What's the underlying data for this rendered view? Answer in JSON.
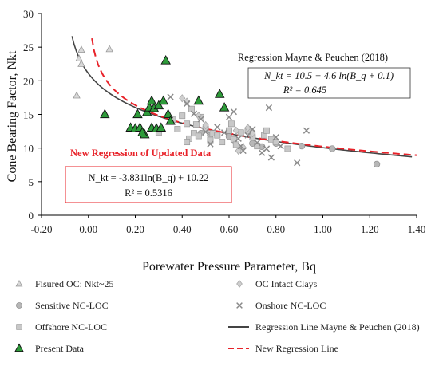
{
  "chart_data": {
    "type": "scatter",
    "xlabel": "Porewater Pressure Parameter, Bq",
    "ylabel": "Cone Bearing Factor, Nkt",
    "xlim": [
      -0.2,
      1.4
    ],
    "ylim": [
      0,
      30
    ],
    "x_ticks": [
      "-0.20",
      "0.00",
      "0.20",
      "0.40",
      "0.60",
      "0.80",
      "1.00",
      "1.20",
      "1.40"
    ],
    "y_ticks": [
      "0",
      "5",
      "10",
      "15",
      "20",
      "25",
      "30"
    ],
    "grid": false,
    "legend_position": "bottom",
    "series": [
      {
        "name": "Fisured OC: Nkt~25",
        "marker": "triangle-open",
        "color": "#9a9a9a",
        "points": [
          [
            -0.05,
            17.8
          ],
          [
            -0.04,
            23.3
          ],
          [
            -0.03,
            22.5
          ],
          [
            -0.03,
            24.6
          ],
          [
            0.09,
            24.7
          ]
        ]
      },
      {
        "name": "Sensitive NC-LOC",
        "marker": "circle",
        "color": "#b7b7b7",
        "points": [
          [
            0.48,
            12.2
          ],
          [
            0.52,
            11.9
          ],
          [
            0.6,
            11.7
          ],
          [
            0.62,
            11.2
          ],
          [
            0.7,
            10.7
          ],
          [
            0.74,
            10.2
          ],
          [
            0.8,
            10.7
          ],
          [
            0.91,
            10.3
          ],
          [
            1.04,
            9.9
          ],
          [
            1.23,
            7.6
          ]
        ]
      },
      {
        "name": "Offshore NC-LOC",
        "marker": "square",
        "color": "#c8c8c8",
        "points": [
          [
            0.3,
            12.3
          ],
          [
            0.36,
            14.2
          ],
          [
            0.38,
            12.8
          ],
          [
            0.4,
            14.8
          ],
          [
            0.42,
            13.6
          ],
          [
            0.43,
            11.4
          ],
          [
            0.44,
            15.8
          ],
          [
            0.45,
            12.2
          ],
          [
            0.46,
            13.5
          ],
          [
            0.47,
            11.8
          ],
          [
            0.48,
            14.6
          ],
          [
            0.5,
            12.8
          ],
          [
            0.52,
            11.2
          ],
          [
            0.53,
            12.2
          ],
          [
            0.55,
            11.9
          ],
          [
            0.57,
            10.9
          ],
          [
            0.6,
            12.6
          ],
          [
            0.61,
            13.6
          ],
          [
            0.62,
            11.3
          ],
          [
            0.63,
            10.5
          ],
          [
            0.65,
            12.3
          ],
          [
            0.68,
            12.6
          ],
          [
            0.7,
            11.6
          ],
          [
            0.72,
            10.3
          ],
          [
            0.75,
            11.9
          ],
          [
            0.76,
            12.6
          ],
          [
            0.78,
            11.3
          ],
          [
            0.8,
            10.9
          ],
          [
            0.85,
            9.9
          ],
          [
            0.42,
            10.9
          ]
        ]
      },
      {
        "name": "Present Data",
        "marker": "triangle-filled",
        "color": "#2e9b3a",
        "points": [
          [
            0.07,
            15.0
          ],
          [
            0.18,
            13.0
          ],
          [
            0.2,
            12.9
          ],
          [
            0.21,
            15.0
          ],
          [
            0.22,
            13.0
          ],
          [
            0.24,
            12.0
          ],
          [
            0.25,
            15.3
          ],
          [
            0.26,
            16.0
          ],
          [
            0.27,
            17.0
          ],
          [
            0.27,
            13.0
          ],
          [
            0.28,
            15.9
          ],
          [
            0.29,
            12.9
          ],
          [
            0.3,
            16.3
          ],
          [
            0.31,
            13.0
          ],
          [
            0.32,
            17.0
          ],
          [
            0.33,
            23.0
          ],
          [
            0.34,
            15.0
          ],
          [
            0.35,
            14.0
          ],
          [
            0.47,
            17.0
          ],
          [
            0.56,
            18.0
          ],
          [
            0.58,
            16.0
          ],
          [
            0.23,
            12.3
          ]
        ]
      },
      {
        "name": "OC Intact Clays",
        "marker": "diamond",
        "color": "#a8a8a8",
        "points": [
          [
            0.4,
            17.4
          ],
          [
            0.42,
            16.9
          ],
          [
            0.47,
            14.8
          ],
          [
            0.5,
            13.4
          ],
          [
            0.63,
            12.6
          ],
          [
            0.68,
            13.0
          ],
          [
            0.7,
            12.2
          ],
          [
            0.66,
            10.1
          ],
          [
            0.64,
            9.6
          ]
        ]
      },
      {
        "name": "Onshore NC-LOC",
        "marker": "cross",
        "color": "#8a8a8a",
        "points": [
          [
            0.35,
            17.6
          ],
          [
            0.42,
            16.6
          ],
          [
            0.45,
            15.1
          ],
          [
            0.48,
            14.3
          ],
          [
            0.5,
            12.4
          ],
          [
            0.52,
            10.6
          ],
          [
            0.55,
            13.1
          ],
          [
            0.58,
            12.3
          ],
          [
            0.6,
            14.6
          ],
          [
            0.62,
            15.4
          ],
          [
            0.64,
            11.4
          ],
          [
            0.65,
            10.3
          ],
          [
            0.66,
            9.6
          ],
          [
            0.68,
            11.9
          ],
          [
            0.7,
            12.8
          ],
          [
            0.72,
            10.8
          ],
          [
            0.74,
            9.3
          ],
          [
            0.76,
            9.9
          ],
          [
            0.77,
            16.0
          ],
          [
            0.78,
            8.6
          ],
          [
            0.8,
            11.6
          ],
          [
            0.82,
            10.3
          ],
          [
            0.89,
            7.8
          ],
          [
            0.93,
            12.6
          ]
        ]
      }
    ],
    "curves": [
      {
        "name": "Regression Line Mayne & Peuchen (2018)",
        "style": "solid",
        "color": "#444444",
        "x_start": -0.07,
        "x_end": 1.38,
        "formula": "10.5 - 4.6*ln(Bq + 0.1)"
      },
      {
        "name": "New Regression Line",
        "style": "dashed",
        "color": "#e8232a",
        "x_start": 0.015,
        "x_end": 1.4,
        "formula": "-3.831*ln(Bq) + 10.22"
      }
    ],
    "annotations": {
      "mayne_title": "Regression Mayne & Peuchen (2018)",
      "mayne_eq": "N_kt = 10.5 − 4.6 ln(B_q + 0.1)",
      "mayne_r2": "R² = 0.645",
      "new_title": "New Regression of Updated Data",
      "new_eq": "N_kt = -3.831ln(B_q) + 10.22",
      "new_r2": "R² = 0.5316"
    }
  }
}
